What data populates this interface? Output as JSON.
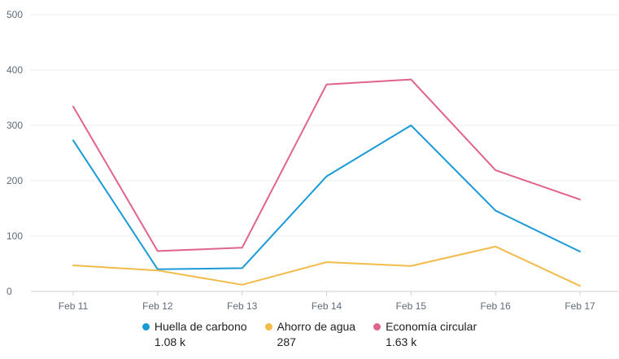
{
  "chart_data": {
    "type": "line",
    "categories": [
      "Feb 11",
      "Feb 12",
      "Feb 13",
      "Feb 14",
      "Feb 15",
      "Feb 16",
      "Feb 17"
    ],
    "ylim": [
      0,
      500
    ],
    "yticks": [
      "0",
      "100",
      "200",
      "300",
      "400",
      "500"
    ],
    "grid": true,
    "legend_position": "bottom",
    "series": [
      {
        "name": "Huella de carbono",
        "total": "1.08 k",
        "color": "#1a9ad6",
        "values": [
          273,
          40,
          42,
          208,
          300,
          146,
          72
        ]
      },
      {
        "name": "Ahorro de agua",
        "total": "287",
        "color": "#f2bb4a",
        "values": [
          47,
          38,
          12,
          53,
          46,
          81,
          10
        ]
      },
      {
        "name": "Economía circular",
        "total": "1.63 k",
        "color": "#e0638e",
        "values": [
          334,
          73,
          79,
          374,
          383,
          219,
          166
        ]
      }
    ]
  }
}
